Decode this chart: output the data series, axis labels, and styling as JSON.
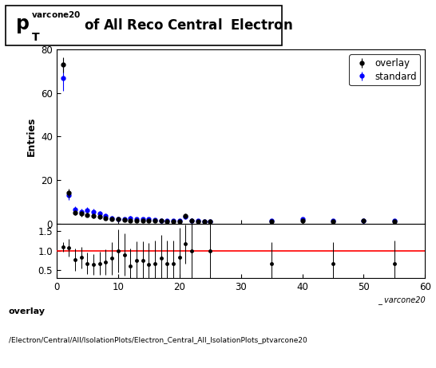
{
  "title_main": "p",
  "title_super": "varcone20",
  "title_sub": "T",
  "title_rest": " of All Reco Central  Electron",
  "xlabel": "_ varcone20",
  "ylabel_main": "Entries",
  "xmin": 0,
  "xmax": 60,
  "ymin": 0,
  "ymax": 80,
  "ratio_ymin": 0.3,
  "ratio_ymax": 1.7,
  "overlay_color": "#000000",
  "standard_color": "#0000ff",
  "ratio_line_color": "#ff0000",
  "overlay_x": [
    1,
    2,
    3,
    4,
    5,
    6,
    7,
    8,
    9,
    10,
    11,
    12,
    13,
    14,
    15,
    16,
    17,
    18,
    19,
    20,
    21,
    22,
    23,
    24,
    25,
    35,
    40,
    45,
    50,
    55
  ],
  "overlay_y": [
    73,
    14,
    5,
    4.5,
    4,
    3.5,
    3.0,
    2.5,
    2.0,
    2.0,
    1.8,
    1.5,
    1.5,
    1.5,
    1.3,
    1.2,
    1.2,
    1.0,
    1.0,
    1.0,
    3.5,
    1.5,
    1.0,
    1.0,
    1.0,
    1.0,
    1.5,
    1.0,
    1.5,
    1.0
  ],
  "overlay_yerr": [
    3.5,
    2.0,
    1.2,
    1.2,
    1.0,
    1.0,
    0.9,
    0.8,
    0.8,
    0.8,
    0.8,
    0.7,
    0.7,
    0.7,
    0.7,
    0.6,
    0.6,
    0.6,
    0.6,
    0.6,
    1.0,
    0.8,
    0.6,
    0.6,
    0.6,
    0.6,
    0.7,
    0.6,
    0.7,
    0.6
  ],
  "standard_x": [
    1,
    2,
    3,
    4,
    5,
    6,
    7,
    8,
    9,
    10,
    11,
    12,
    13,
    14,
    15,
    16,
    17,
    18,
    19,
    20,
    21,
    22,
    23,
    24,
    25,
    35,
    40,
    45,
    50,
    55
  ],
  "standard_y": [
    67,
    13,
    6.5,
    5.5,
    6,
    5.5,
    4.5,
    3.5,
    2.5,
    2.0,
    2.0,
    2.5,
    2.0,
    2.0,
    2.0,
    1.8,
    1.5,
    1.5,
    1.5,
    1.2,
    3.0,
    1.5,
    1.5,
    1.0,
    1.0,
    1.5,
    2.0,
    1.5,
    1.5,
    1.5
  ],
  "standard_yerr": [
    6,
    2.0,
    1.5,
    1.3,
    1.5,
    1.3,
    1.2,
    1.0,
    0.9,
    0.8,
    0.8,
    0.9,
    0.8,
    0.8,
    0.8,
    0.8,
    0.7,
    0.7,
    0.7,
    0.6,
    1.0,
    0.8,
    0.7,
    0.6,
    0.6,
    0.7,
    0.8,
    0.7,
    0.7,
    0.7
  ],
  "ratio_x": [
    1,
    2,
    3,
    4,
    5,
    6,
    7,
    8,
    9,
    10,
    11,
    12,
    13,
    14,
    15,
    16,
    17,
    18,
    19,
    20,
    21,
    22,
    25,
    35,
    45,
    55
  ],
  "ratio_y": [
    1.09,
    1.08,
    0.77,
    0.82,
    0.67,
    0.64,
    0.67,
    0.71,
    0.8,
    1.0,
    0.9,
    0.6,
    0.75,
    0.75,
    0.65,
    0.67,
    0.8,
    0.67,
    0.67,
    0.83,
    1.17,
    1.0,
    1.0,
    0.67,
    0.67,
    0.67
  ],
  "ratio_yerr": [
    0.12,
    0.22,
    0.28,
    0.27,
    0.28,
    0.27,
    0.3,
    0.33,
    0.43,
    0.55,
    0.55,
    0.45,
    0.5,
    0.5,
    0.55,
    0.6,
    0.6,
    0.6,
    0.6,
    0.75,
    0.5,
    0.7,
    0.8,
    0.55,
    0.55,
    0.6
  ],
  "footer_line1": "overlay",
  "footer_line2": "/Electron/Central/All/IsolationPlots/Electron_Central_All_IsolationPlots_ptvarcone20"
}
